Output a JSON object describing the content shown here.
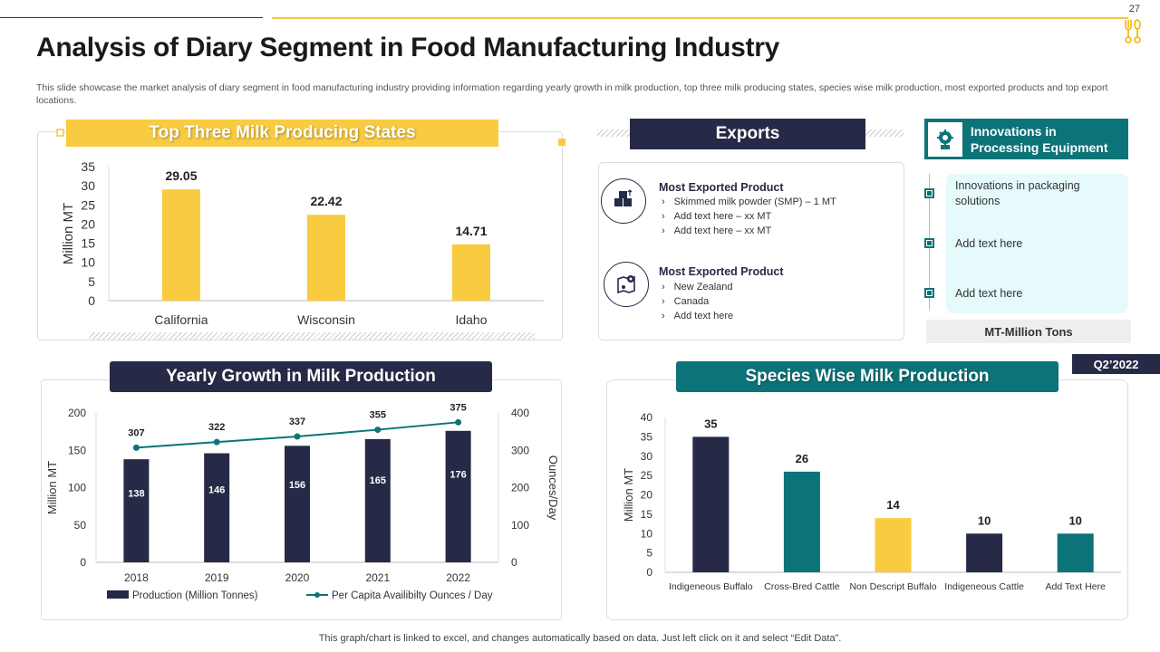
{
  "page_number": "27",
  "title": "Analysis of Diary Segment in Food Manufacturing Industry",
  "subtitle": "This slide showcase the market analysis of diary segment in food manufacturing industry providing information regarding yearly growth in milk production, top three milk producing states, species wise milk production, most exported  products and top export  locations.",
  "footer": "This graph/chart is linked to excel, and changes automatically based on data. Just left click on it and select “Edit Data”.",
  "colors": {
    "yellow": "#f9cb40",
    "navy": "#262a46",
    "teal": "#0c7378"
  },
  "exports": {
    "title": "Exports",
    "items": [
      {
        "icon": "boxes-icon",
        "heading": "Most Exported Product",
        "lines": [
          "Skimmed milk powder (SMP) – 1 MT",
          "Add text here – xx MT",
          "Add text here – xx MT"
        ]
      },
      {
        "icon": "location-map-icon",
        "heading": "Most Exported Product",
        "lines": [
          "New Zealand",
          "Canada",
          "Add text here"
        ]
      }
    ]
  },
  "innovations": {
    "title": "Innovations in Processing Equipment",
    "items": [
      "Innovations in packaging solutions",
      "Add text here",
      "Add text here"
    ],
    "unit_note": "MT-Million Tons"
  },
  "quarter_badge": "Q2’2022",
  "chart_data": [
    {
      "type": "bar",
      "title": "Top Three Milk Producing States",
      "categories": [
        "California",
        "Wisconsin",
        "Idaho"
      ],
      "values": [
        29.05,
        22.42,
        14.71
      ],
      "value_labels": [
        "29.05",
        "22.42",
        "14.71"
      ],
      "ylabel": "Million MT",
      "ylim": [
        0,
        35
      ],
      "yticks": [
        "0",
        "5",
        "10",
        "15",
        "20",
        "25",
        "30",
        "35"
      ],
      "color": "#f9cb40"
    },
    {
      "type": "bar",
      "title": "Yearly Growth in Milk Production",
      "categories": [
        "2018",
        "2019",
        "2020",
        "2021",
        "2022"
      ],
      "series": [
        {
          "name": "Production (Million Tonnes)",
          "type": "bar",
          "axis": "left",
          "values": [
            138,
            146,
            156,
            165,
            176
          ],
          "value_labels": [
            "138",
            "146",
            "156",
            "165",
            "176"
          ],
          "color": "#262a46"
        },
        {
          "name": "Per Capita Availibilty Ounces / Day",
          "type": "line",
          "axis": "right",
          "values": [
            307,
            322,
            337,
            355,
            375
          ],
          "value_labels": [
            "307",
            "322",
            "337",
            "355",
            "375"
          ],
          "color": "#0c7378"
        }
      ],
      "ylabel": "Million MT",
      "ylabel_right": "Ounces/Day",
      "ylim": [
        0,
        200
      ],
      "ylim_right": [
        0,
        400
      ],
      "yticks": [
        "0",
        "50",
        "100",
        "150",
        "200"
      ],
      "yticks_right": [
        "0",
        "100",
        "200",
        "300",
        "400"
      ],
      "legend": "bottom"
    },
    {
      "type": "bar",
      "title": "Species Wise Milk Production",
      "categories": [
        "Indigeneous Buffalo",
        "Cross-Bred Cattle",
        "Non Descript Buffalo",
        "Indigeneous Cattle",
        "Add Text Here"
      ],
      "values": [
        35,
        26,
        14,
        10,
        10
      ],
      "value_labels": [
        "35",
        "26",
        "14",
        "10",
        "10"
      ],
      "colors": [
        "#262a46",
        "#0c7378",
        "#f9cb40",
        "#262a46",
        "#0c7378"
      ],
      "ylabel": "Million MT",
      "ylim": [
        0,
        40
      ],
      "yticks": [
        "0",
        "5",
        "10",
        "15",
        "20",
        "25",
        "30",
        "35",
        "40"
      ]
    }
  ]
}
